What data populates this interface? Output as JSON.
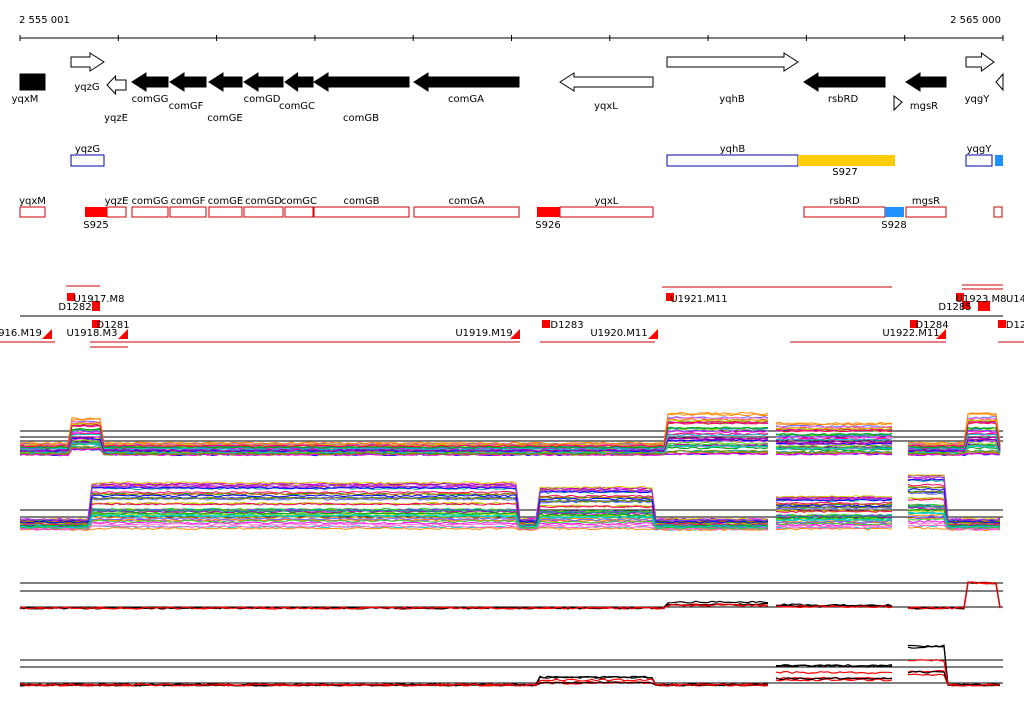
{
  "ruler": {
    "start_label": "2 555 001",
    "end_label": "2 565 000"
  },
  "colors": {
    "gene_fill": "#000000",
    "s_red": "#ff0000",
    "s_blue": "#1e90ff",
    "s_yellow": "#ffcc00",
    "annot_blue": "#0000aa",
    "annot_red": "#cc0000",
    "curve_black": "#000000",
    "curve_red": "#ff0000"
  },
  "genes": [
    {
      "name": "yqxM",
      "strand": "+",
      "filled": true
    },
    {
      "name": "yqzG",
      "strand": "+",
      "filled": false
    },
    {
      "name": "yqzE",
      "strand": "-",
      "filled": false
    },
    {
      "name": "comGG",
      "strand": "-",
      "filled": true
    },
    {
      "name": "comGF",
      "strand": "-",
      "filled": true
    },
    {
      "name": "comGE",
      "strand": "-",
      "filled": true
    },
    {
      "name": "comGD",
      "strand": "-",
      "filled": true
    },
    {
      "name": "comGC",
      "strand": "-",
      "filled": true
    },
    {
      "name": "comGB",
      "strand": "-",
      "filled": true
    },
    {
      "name": "comGA",
      "strand": "-",
      "filled": true
    },
    {
      "name": "yqxL",
      "strand": "-",
      "filled": false
    },
    {
      "name": "yqhB",
      "strand": "+",
      "filled": false
    },
    {
      "name": "rsbRD",
      "strand": "-",
      "filled": true
    },
    {
      "name": "mgsR",
      "strand": "-",
      "filled": true
    },
    {
      "name": "yqgY",
      "strand": "+",
      "filled": false
    }
  ],
  "blue_track": [
    {
      "label": "yqzG"
    },
    {
      "label": "yqhB"
    },
    {
      "label": "yqgY"
    }
  ],
  "segments": [
    {
      "label": "S927",
      "color": "yellow"
    },
    {
      "label": "S925",
      "color": "red"
    },
    {
      "label": "S926",
      "color": "red"
    },
    {
      "label": "S928",
      "color": "blue"
    }
  ],
  "red_track": [
    {
      "label": "yqxM"
    },
    {
      "label": "yqzE"
    },
    {
      "label": "comGG"
    },
    {
      "label": "comGF"
    },
    {
      "label": "comGE"
    },
    {
      "label": "comGD"
    },
    {
      "label": "comGC"
    },
    {
      "label": "comGB"
    },
    {
      "label": "comGA"
    },
    {
      "label": "yqxL"
    },
    {
      "label": "rsbRD"
    },
    {
      "label": "mgsR"
    }
  ],
  "transcripts": [
    {
      "label": "U1917.M8"
    },
    {
      "label": "D1282"
    },
    {
      "label": "916.M19"
    },
    {
      "label": "U1918.M3"
    },
    {
      "label": "D1281"
    },
    {
      "label": "U1919.M19"
    },
    {
      "label": "D1283"
    },
    {
      "label": "U1920.M11"
    },
    {
      "label": "U1921.M11"
    },
    {
      "label": "U1922.M11"
    },
    {
      "label": "D1284"
    },
    {
      "label": "D1285"
    },
    {
      "label": "U1923.M8"
    },
    {
      "label": "U14"
    },
    {
      "label": "D12"
    }
  ]
}
